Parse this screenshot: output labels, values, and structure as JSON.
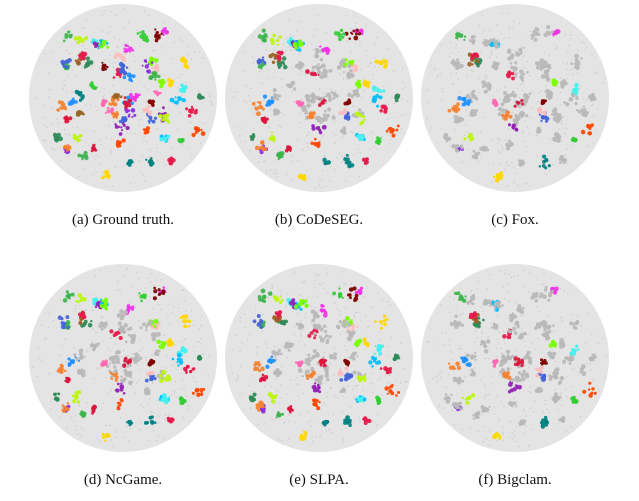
{
  "figure": {
    "panels": [
      {
        "id": "a",
        "caption": "(a) Ground truth.",
        "scheme": "ground-truth"
      },
      {
        "id": "b",
        "caption": "(b) CoDeSEG.",
        "scheme": "partial"
      },
      {
        "id": "c",
        "caption": "(c) Fox.",
        "scheme": "sparse"
      },
      {
        "id": "d",
        "caption": "(d) NcGame.",
        "scheme": "partial"
      },
      {
        "id": "e",
        "caption": "(e) SLPA.",
        "scheme": "partial"
      },
      {
        "id": "f",
        "caption": "(f) Bigclam.",
        "scheme": "sparse"
      }
    ],
    "palette": [
      "#e6194b",
      "#3cb44b",
      "#4363d8",
      "#f58231",
      "#911eb4",
      "#46f0f0",
      "#f032e6",
      "#bcf60c",
      "#fabebe",
      "#008080",
      "#9a6324",
      "#800000",
      "#2e8b57",
      "#ff69b4",
      "#00bfff",
      "#ff4500",
      "#7cfc00",
      "#8a2be2",
      "#ffd700",
      "#1e90ff",
      "#32cd32",
      "#dc143c"
    ],
    "background_disc_color": "#e4e4e4",
    "unassigned_color": "#b8b8b8"
  }
}
